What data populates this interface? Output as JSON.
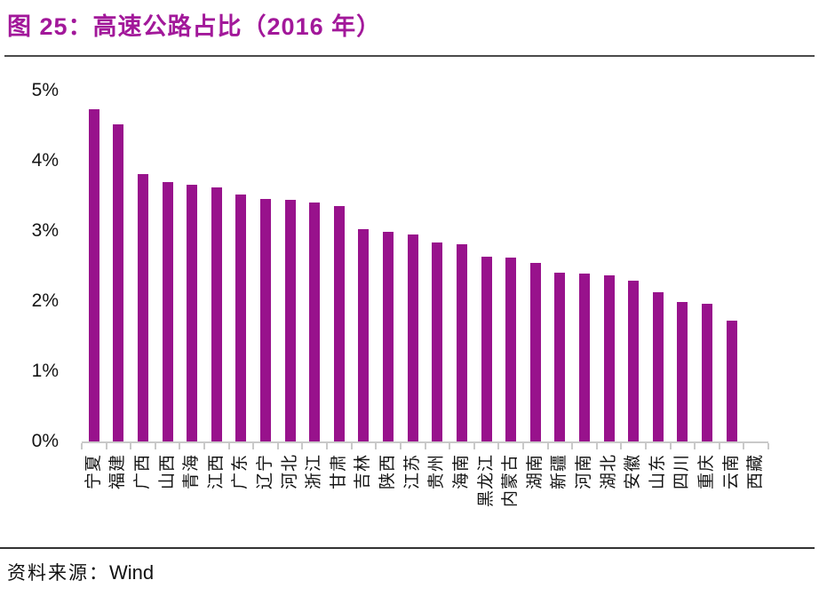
{
  "page": {
    "title": "图 25：高速公路占比（2016 年）",
    "source_prefix": "资料来源：",
    "source_name": "Wind"
  },
  "chart_data": {
    "type": "bar",
    "title": "高速公路占比（2016 年）",
    "categories": [
      "宁夏",
      "福建",
      "广西",
      "山西",
      "青海",
      "江西",
      "广东",
      "辽宁",
      "河北",
      "浙江",
      "甘肃",
      "吉林",
      "陕西",
      "江苏",
      "贵州",
      "海南",
      "黑龙江",
      "内蒙古",
      "湖南",
      "新疆",
      "河南",
      "湖北",
      "安徽",
      "山东",
      "四川",
      "重庆",
      "云南",
      "西藏"
    ],
    "values": [
      4.74,
      4.52,
      3.81,
      3.7,
      3.66,
      3.62,
      3.52,
      3.46,
      3.44,
      3.4,
      3.36,
      3.03,
      2.99,
      2.95,
      2.83,
      2.81,
      2.63,
      2.62,
      2.54,
      2.4,
      2.39,
      2.37,
      2.29,
      2.13,
      1.99,
      1.96,
      1.72,
      0
    ],
    "unit": "%",
    "xlabel": "",
    "ylabel": "",
    "ylim": [
      0,
      5
    ],
    "yticks": [
      "0%",
      "1%",
      "2%",
      "3%",
      "4%",
      "5%"
    ],
    "grid": false,
    "legend": "none",
    "bar_color": "#98128C",
    "axis_color": "#C9C9C9",
    "title_color": "#A2189A"
  }
}
